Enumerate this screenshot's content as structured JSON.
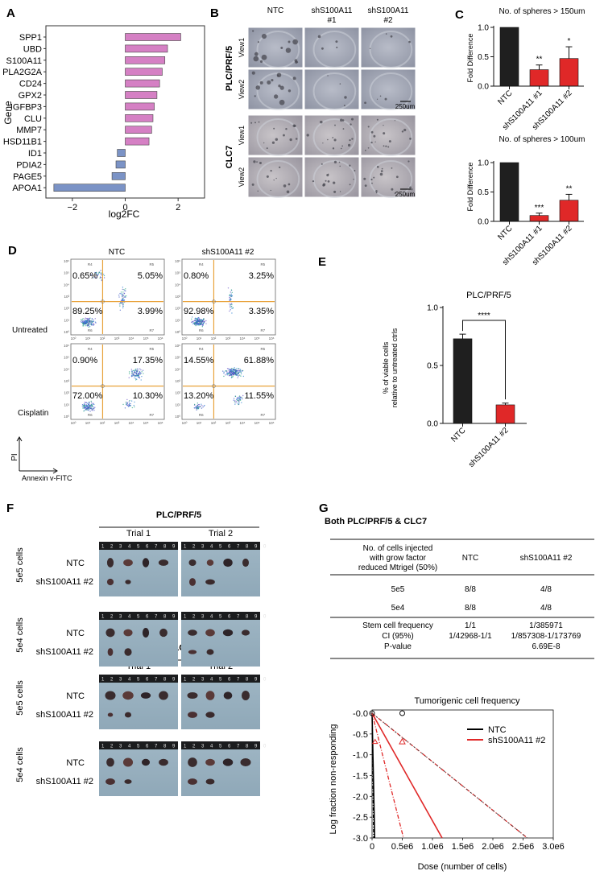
{
  "panel_letters": {
    "a": "A",
    "b": "B",
    "c": "C",
    "d": "D",
    "e": "E",
    "f": "F",
    "g": "G"
  },
  "panel_a": {
    "ylabel": "Gene",
    "xlabel": "log2FC",
    "ticks": [
      "−2",
      "0",
      "2"
    ],
    "colors": {
      "up": "#d580c4",
      "down": "#7b93c6"
    }
  },
  "panel_b": {
    "col_headers": [
      "NTC",
      "shS100A11\n#1",
      "shS100A11\n#2"
    ],
    "row_groups": [
      "PLC/PRF/5",
      "CLC7"
    ],
    "views": [
      "View1",
      "View2"
    ],
    "scalebar": "250um"
  },
  "panel_c": {
    "colors": {
      "ntc": "#1f1f1f",
      "kd": "#e02828"
    },
    "top": {
      "title": "No. of spheres > 150um",
      "ylabel": "Fold Difference",
      "ticks": [
        "0.0",
        "0.5",
        "1.0"
      ],
      "stars": [
        "",
        "**",
        "*"
      ]
    },
    "bottom": {
      "title": "No. of spheres > 100um",
      "ylabel": "Fold Difference",
      "ticks": [
        "0.0",
        "0.5",
        "1.0"
      ],
      "stars": [
        "",
        "***",
        "**"
      ]
    }
  },
  "panel_d": {
    "col_headers": [
      "NTC",
      "shS100A11 #2"
    ],
    "row_labels": [
      "Untreated",
      "Cisplatin"
    ],
    "quadrants": [
      [
        "0.65%",
        "5.05%",
        "89.25%",
        "3.99%"
      ],
      [
        "0.80%",
        "3.25%",
        "92.98%",
        "3.35%"
      ],
      [
        "0.90%",
        "17.35%",
        "72.00%",
        "10.30%"
      ],
      [
        "14.55%",
        "61.88%",
        "13.20%",
        "11.55%"
      ]
    ],
    "gate_labels": [
      "R4",
      "R5",
      "R6",
      "R7"
    ],
    "y_axis": "PI",
    "x_axis": "Annexin v-FITC"
  },
  "panel_e": {
    "title": "PLC/PRF/5",
    "ylabel_line1": "% of viable cells",
    "ylabel_line2": "relative to untreated ctrls",
    "ticks": [
      "0.0",
      "0.5",
      "1.0"
    ],
    "sig": "****"
  },
  "panel_f": {
    "group_titles": [
      "PLC/PRF/5",
      "CLC7"
    ],
    "trials": [
      "Trial 1",
      "Trial 2"
    ],
    "rows": [
      "5e5 cells",
      "5e4 cells"
    ],
    "samples": [
      "NTC",
      "shS100A11 #2"
    ],
    "ruler_digits": "1 2 3 4 5 6 7 8 9 0"
  },
  "panel_g": {
    "heading": "Both PLC/PRF/5 & CLC7",
    "table": {
      "head_c1": [
        "No. of cells injected",
        "with grow factor",
        "reduced Mtrigel (50%)"
      ],
      "head_c2": "NTC",
      "head_c3": "shS100A11 #2",
      "rows": [
        [
          "5e5",
          "8/8",
          "4/8"
        ],
        [
          "5e4",
          "8/8",
          "4/8"
        ]
      ],
      "stats_labels": [
        "Stem cell frequency",
        "CI (95%)",
        "P-value"
      ],
      "stats_ntc": [
        "1/1",
        "1/42968-1/1",
        ""
      ],
      "stats_kd": [
        "1/385971",
        "1/857308-1/173769",
        "6.69E-8"
      ]
    },
    "plot": {
      "title": "Tumorigenic cell frequency",
      "xlabel": "Dose (number of cells)",
      "ylabel": "Log fraction non-responding",
      "xticks": [
        "0",
        "0.5e6",
        "1.0e6",
        "1.5e6",
        "2.0e6",
        "2.5e6",
        "3.0e6"
      ],
      "yticks": [
        "-0.0",
        "-0.5",
        "-1.0",
        "-1.5",
        "-2.0",
        "-2.5",
        "-3.0"
      ],
      "legend": [
        "NTC",
        "shS100A11 #2"
      ],
      "colors": {
        "ntc": "#000000",
        "kd": "#e02828"
      }
    }
  },
  "chart_data": [
    {
      "type": "bar",
      "orientation": "horizontal",
      "categories": [
        "SPP1",
        "UBD",
        "S100A11",
        "PLA2G2A",
        "CD24",
        "GPX2",
        "IGFBP3",
        "CLU",
        "MMP7",
        "HSD11B1",
        "ID1",
        "PDIA2",
        "PAGE5",
        "APOA1"
      ],
      "values": [
        2.1,
        1.6,
        1.5,
        1.4,
        1.3,
        1.2,
        1.1,
        1.05,
        1.0,
        0.9,
        -0.3,
        -0.35,
        -0.5,
        -2.7
      ],
      "xlabel": "log2FC",
      "ylabel": "Gene",
      "xlim": [
        -3,
        3
      ]
    },
    {
      "type": "bar",
      "title": "No. of spheres > 150um",
      "categories": [
        "NTC",
        "shS100A11 #1",
        "shS100A11 #2"
      ],
      "values": [
        1.0,
        0.28,
        0.47
      ],
      "errors": [
        0.0,
        0.08,
        0.2
      ],
      "ylabel": "Fold Difference",
      "ylim": [
        0,
        1.0
      ]
    },
    {
      "type": "bar",
      "title": "No. of spheres > 100um",
      "categories": [
        "NTC",
        "shS100A11 #1",
        "shS100A11 #2"
      ],
      "values": [
        1.0,
        0.1,
        0.36
      ],
      "errors": [
        0.0,
        0.04,
        0.1
      ],
      "ylabel": "Fold Difference",
      "ylim": [
        0,
        1.0
      ]
    },
    {
      "type": "bar",
      "title": "PLC/PRF/5",
      "categories": [
        "NTC",
        "shS100A11 #2"
      ],
      "values": [
        0.73,
        0.16
      ],
      "errors": [
        0.04,
        0.015
      ],
      "ylabel": "% of viable cells relative to untreated ctrls",
      "ylim": [
        0,
        1.0
      ]
    },
    {
      "type": "line",
      "title": "Tumorigenic cell frequency",
      "xlabel": "Dose (number of cells)",
      "ylabel": "Log fraction non-responding",
      "xlim": [
        0,
        3000000
      ],
      "ylim": [
        -3.0,
        0.0
      ],
      "series": [
        {
          "name": "NTC",
          "x": [
            0,
            43000
          ],
          "y": [
            0,
            -3.0
          ]
        },
        {
          "name": "shS100A11 #2",
          "x": [
            0,
            1160000
          ],
          "y": [
            0,
            -3.0
          ]
        }
      ]
    }
  ]
}
